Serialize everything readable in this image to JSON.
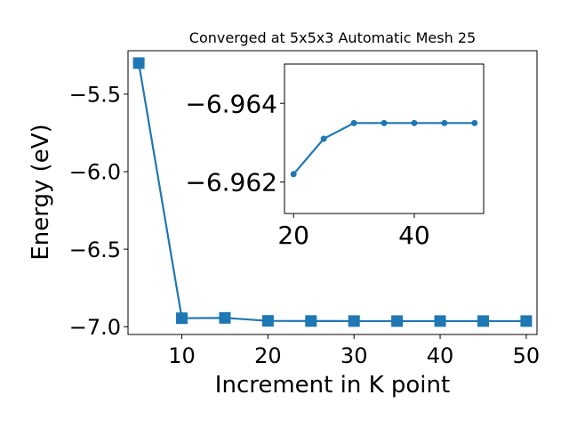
{
  "chart_data": [
    {
      "type": "line",
      "title": "Converged at 5x5x3 Automatic Mesh 25",
      "xlabel": "Increment in K point",
      "ylabel": "Energy (eV)",
      "x": [
        5,
        10,
        15,
        20,
        25,
        30,
        35,
        40,
        45,
        50
      ],
      "series": [
        {
          "values": [
            -5.3,
            -6.945,
            -6.943,
            -6.9622,
            -6.9631,
            -6.9635,
            -6.9635,
            -6.9635,
            -6.9635,
            -6.9635
          ]
        }
      ],
      "xlim": [
        3.75,
        51.25
      ],
      "ylim": [
        -7.05,
        -5.22
      ],
      "xticks": [
        10,
        20,
        30,
        40,
        50
      ],
      "xtick_labels": [
        "10",
        "20",
        "30",
        "40",
        "50"
      ],
      "yticks": [
        -7.0,
        -6.5,
        -6.0,
        -5.5
      ],
      "ytick_labels": [
        "−7.0",
        "−6.5",
        "−6.0",
        "−5.5"
      ],
      "marker": "square",
      "color": "#1f77b4",
      "grid": false
    },
    {
      "type": "line",
      "title": "",
      "xlabel": "",
      "ylabel": "",
      "x": [
        20,
        25,
        30,
        35,
        40,
        45,
        50
      ],
      "series": [
        {
          "values": [
            -6.9622,
            -6.9631,
            -6.9635,
            -6.9635,
            -6.9635,
            -6.9635,
            -6.9635
          ]
        }
      ],
      "xlim": [
        18.5,
        51.5
      ],
      "ylim": [
        -6.9612,
        -6.965
      ],
      "xticks": [
        20,
        40
      ],
      "xtick_labels": [
        "20",
        "40"
      ],
      "yticks": [
        -6.962,
        -6.964
      ],
      "ytick_labels": [
        "−6.962",
        "−6.964"
      ],
      "marker": "circle",
      "color": "#1f77b4",
      "grid": false
    }
  ]
}
